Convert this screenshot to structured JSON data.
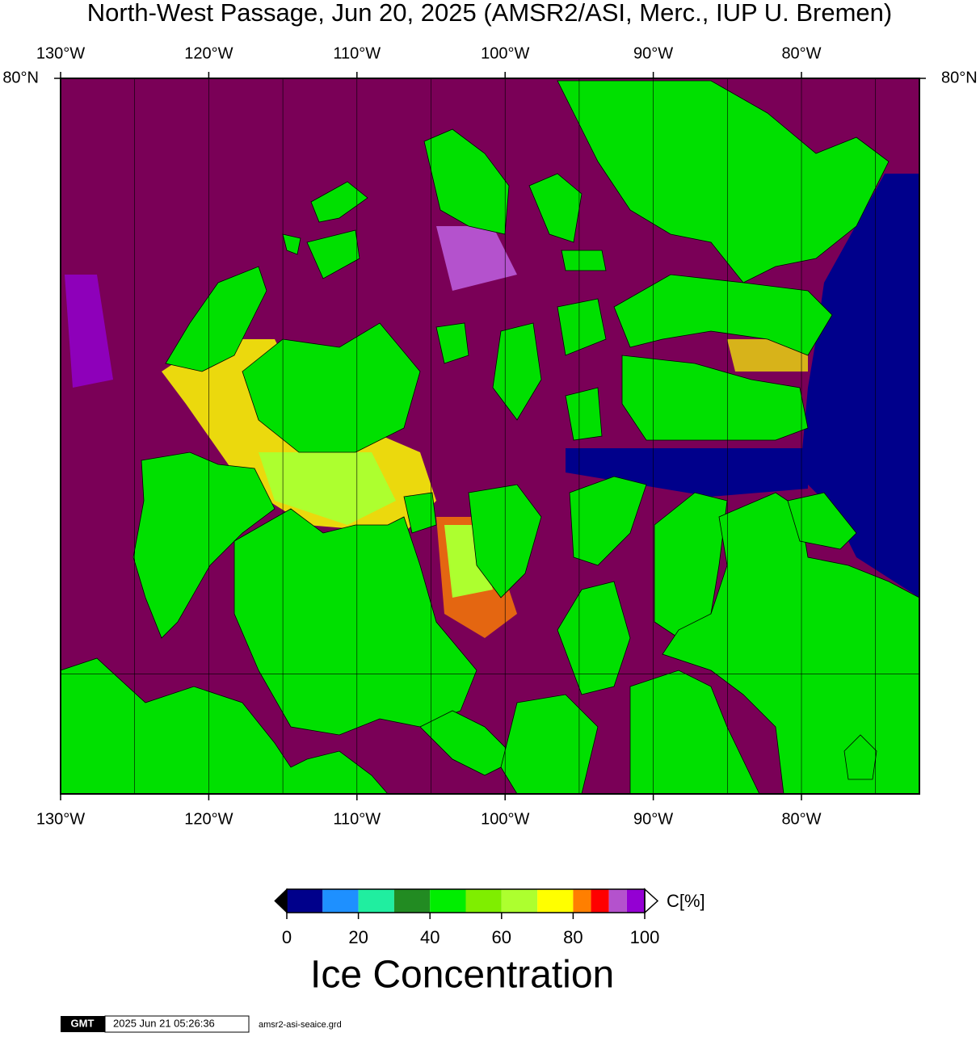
{
  "title": "North-West Passage, Jun 20, 2025 (AMSR2/ASI, Merc., IUP U. Bremen)",
  "map": {
    "xlim": [
      -130,
      -72.04
    ],
    "ylim": [
      67.04,
      80
    ],
    "lon_ticks": [
      {
        "value": -130,
        "label": "130°W"
      },
      {
        "value": -120,
        "label": "120°W"
      },
      {
        "value": -110,
        "label": "110°W"
      },
      {
        "value": -100,
        "label": "100°W"
      },
      {
        "value": -90,
        "label": "90°W"
      },
      {
        "value": -80,
        "label": "80°W"
      }
    ],
    "lon_gridlines": [
      -125,
      -115,
      -105,
      -95,
      -85,
      -75
    ],
    "lat_ticks": [
      {
        "value": 80,
        "label": "80°N"
      }
    ],
    "lat_gridlines": [
      70
    ]
  },
  "colorbar": {
    "bounds": [
      0,
      10,
      20,
      30,
      40,
      50,
      60,
      70,
      80,
      85,
      90,
      95,
      100
    ],
    "colors": [
      "#00008b",
      "#1e90ff",
      "#20eea0",
      "#228b22",
      "#00ee00",
      "#7fee00",
      "#adff2f",
      "#ffff00",
      "#ff7f00",
      "#ff0000",
      "#b452cd",
      "#9400d3"
    ],
    "ticks": [
      0,
      20,
      40,
      60,
      80,
      100
    ],
    "unit": "C[%]",
    "title": "Ice Concentration"
  },
  "footer": {
    "logo": "GMT",
    "timestamp": "2025 Jun 21 05:26:36",
    "filename": "amsr2-asi-seaice.grd"
  }
}
